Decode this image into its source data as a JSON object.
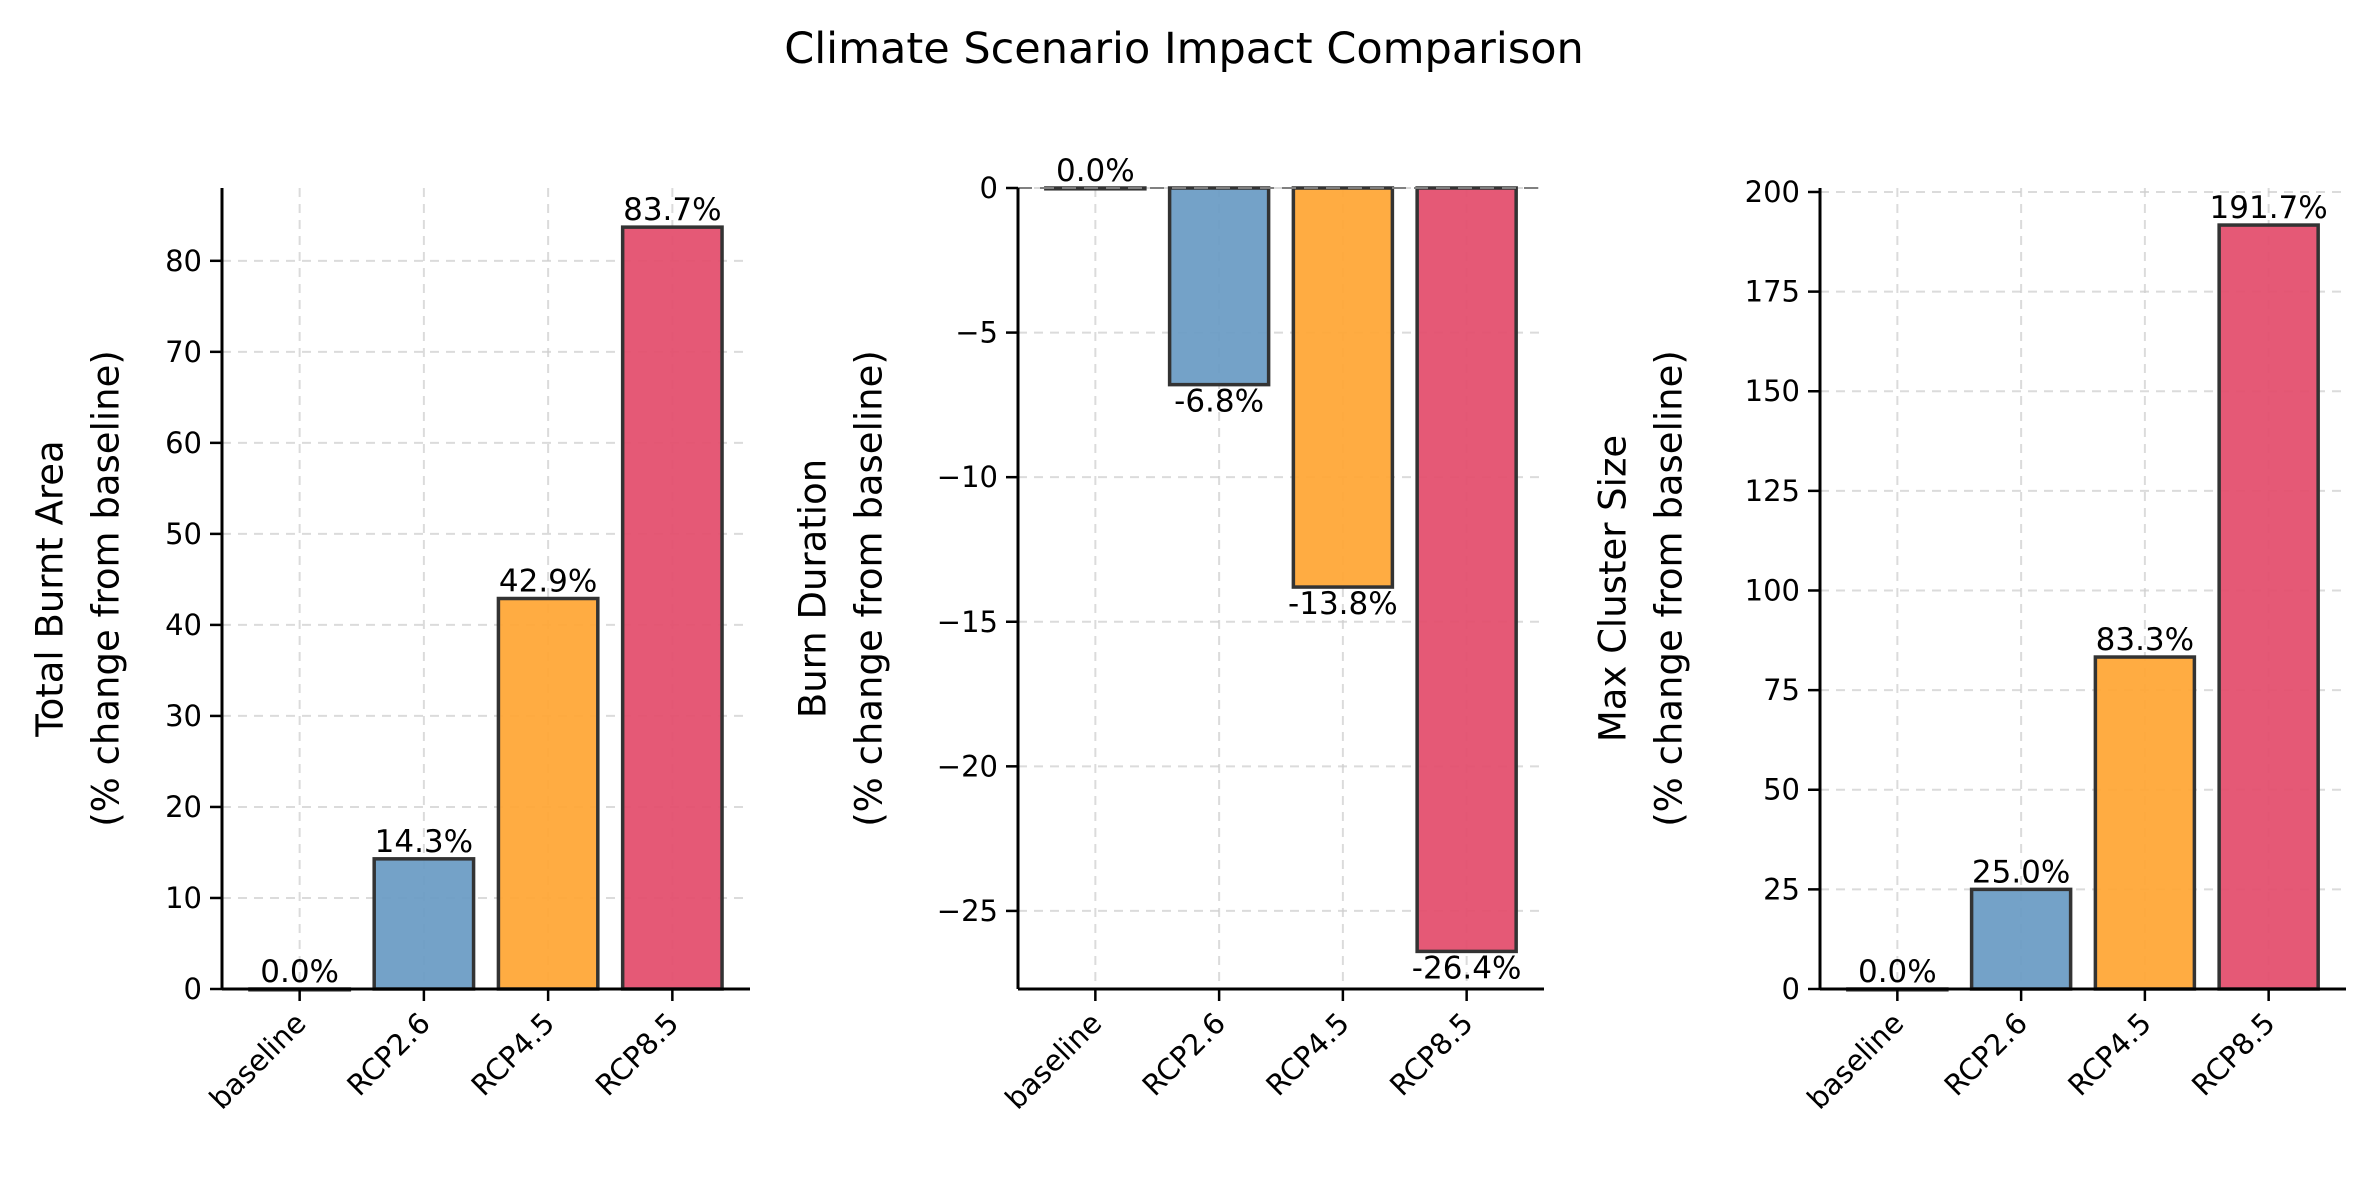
{
  "figure": {
    "title": "Climate Scenario Impact Comparison"
  },
  "colors": {
    "baseline": "#4a4a4a",
    "RCP2.6": "#6d9dc5",
    "RCP4.5": "#ffa838",
    "RCP8.5": "#e4506f",
    "edge": "#333333"
  },
  "chart_data": [
    {
      "type": "bar",
      "categories": [
        "baseline",
        "RCP2.6",
        "RCP4.5",
        "RCP8.5"
      ],
      "values": [
        0.0,
        14.3,
        42.9,
        83.7
      ],
      "data_labels": [
        "0.0%",
        "14.3%",
        "42.9%",
        "83.7%"
      ],
      "title": "",
      "xlabel": "",
      "ylabel": [
        "Total Burnt Area",
        "(% change from baseline)"
      ],
      "ylim": [
        0,
        88
      ],
      "yticks": [
        0,
        10,
        20,
        30,
        40,
        50,
        60,
        70,
        80
      ],
      "ytick_labels": [
        "0",
        "10",
        "20",
        "30",
        "40",
        "50",
        "60",
        "70",
        "80"
      ],
      "grid": true
    },
    {
      "type": "bar",
      "categories": [
        "baseline",
        "RCP2.6",
        "RCP4.5",
        "RCP8.5"
      ],
      "values": [
        0.0,
        -6.8,
        -13.8,
        -26.4
      ],
      "data_labels": [
        "0.0%",
        "-6.8%",
        "-13.8%",
        "-26.4%"
      ],
      "title": "",
      "xlabel": "",
      "ylabel": [
        "Burn Duration",
        "(% change from baseline)"
      ],
      "ylim": [
        -27.7,
        0
      ],
      "yticks": [
        0,
        -5,
        -10,
        -15,
        -20,
        -25
      ],
      "ytick_labels": [
        "0",
        "−5",
        "−10",
        "−15",
        "−20",
        "−25"
      ],
      "grid": true,
      "zero_line": true
    },
    {
      "type": "bar",
      "categories": [
        "baseline",
        "RCP2.6",
        "RCP4.5",
        "RCP8.5"
      ],
      "values": [
        0.0,
        25.0,
        83.3,
        191.7
      ],
      "data_labels": [
        "0.0%",
        "25.0%",
        "83.3%",
        "191.7%"
      ],
      "title": "",
      "xlabel": "",
      "ylabel": [
        "Max Cluster Size",
        "(% change from baseline)"
      ],
      "ylim": [
        0,
        201
      ],
      "yticks": [
        0,
        25,
        50,
        75,
        100,
        125,
        150,
        175,
        200
      ],
      "ytick_labels": [
        "0",
        "25",
        "50",
        "75",
        "100",
        "125",
        "150",
        "175",
        "200"
      ],
      "grid": true
    }
  ]
}
